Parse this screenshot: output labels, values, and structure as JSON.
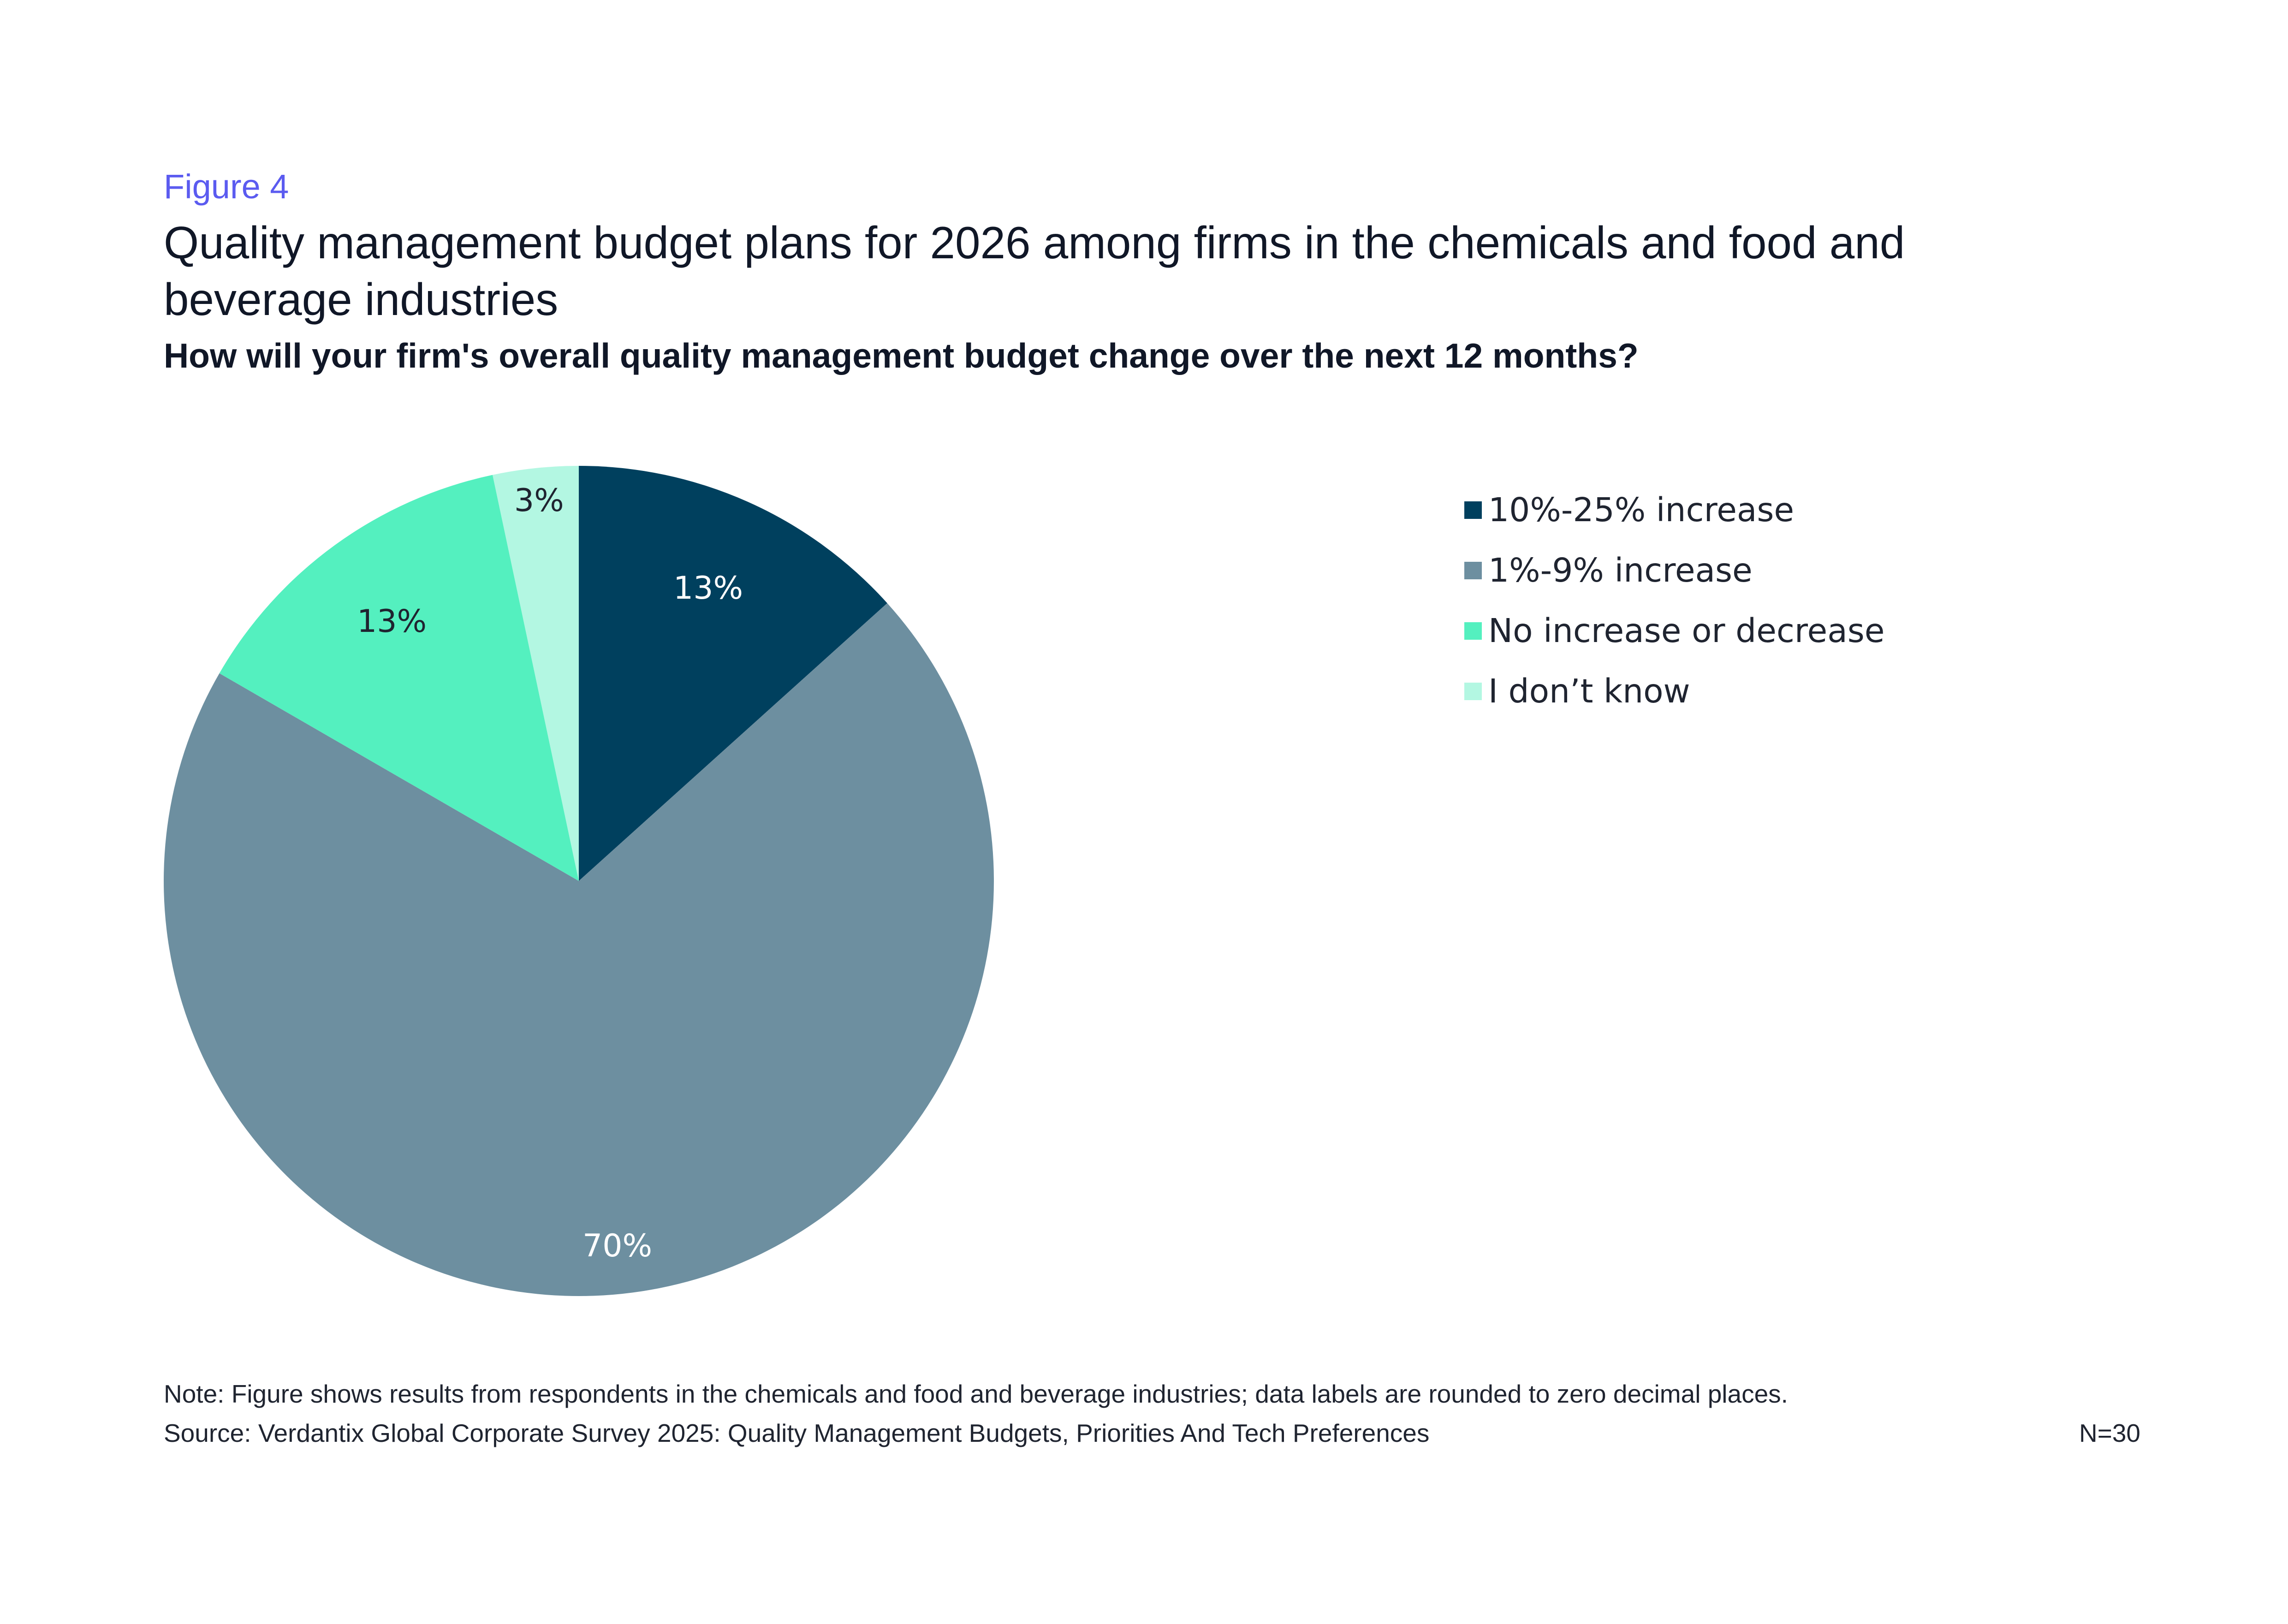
{
  "figure_label": "Figure 4",
  "title": "Quality management budget plans for 2026 among firms in the chemicals and food and beverage industries",
  "subtitle": "How will your firm's overall quality management budget change over the next 12 months?",
  "chart_data": {
    "type": "pie",
    "title": "Quality management budget plans for 2026 among firms in the chemicals and food and beverage industries",
    "subtitle": "How will your firm's overall quality management budget change over the next 12 months?",
    "categories": [
      "10%-25% increase",
      "1%-9% increase",
      "No increase or decrease",
      "I don’t know"
    ],
    "values": [
      13.33,
      70.0,
      13.33,
      3.33
    ],
    "data_labels": [
      "13%",
      "70%",
      "13%",
      "3%"
    ],
    "colors": [
      "#00405e",
      "#6d8fa0",
      "#54f0bf",
      "#b3f7e2"
    ],
    "label_colors": [
      "#ffffff",
      "#ffffff",
      "#1f2430",
      "#1f2430"
    ],
    "start_angle_deg": 0,
    "direction": "clockwise",
    "legend_position": "right"
  },
  "note": "Note: Figure shows results from respondents in the chemicals and food and beverage industries; data labels are rounded to zero decimal places.",
  "source": "Source: Verdantix Global Corporate Survey 2025: Quality Management Budgets, Priorities And Tech Preferences",
  "n_label": "N=30"
}
